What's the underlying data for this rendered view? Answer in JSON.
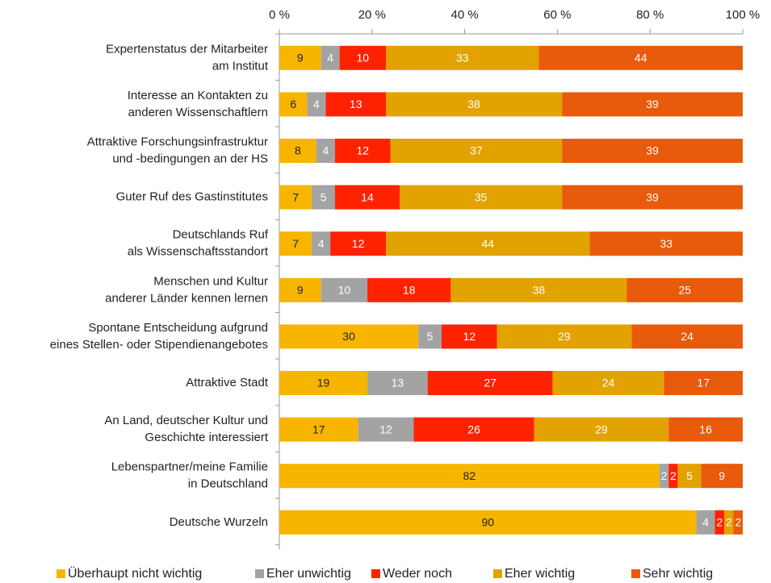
{
  "chart_data": {
    "type": "stacked_barh",
    "categories": [
      "Expertenstatus der Mitarbeiter\nam Institut",
      "Interesse an Kontakten zu\nanderen Wissenschaftlern",
      "Attraktive Forschungsinfrastruktur\nund -bedingungen an der HS",
      "Guter Ruf des Gastinstitutes",
      "Deutschlands Ruf\nals Wissenschaftsstandort",
      "Menschen und Kultur\nanderer Länder kennen lernen",
      "Spontane Entscheidung aufgrund\neines Stellen- oder Stipendienangebotes",
      "Attraktive Stadt",
      "An Land, deutscher Kultur und\nGeschichte interessiert",
      "Lebenspartner/meine Familie\nin Deutschland",
      "Deutsche Wurzeln"
    ],
    "series": [
      {
        "name": "Überhaupt nicht wichtig",
        "color": "#f7b500",
        "label_color": "#222222",
        "values": [
          9,
          6,
          8,
          7,
          7,
          9,
          30,
          19,
          17,
          82,
          90
        ]
      },
      {
        "name": "Eher unwichtig",
        "color": "#a3a3a3",
        "label_color": "#ffffff",
        "values": [
          4,
          4,
          4,
          5,
          4,
          10,
          5,
          13,
          12,
          2,
          4
        ]
      },
      {
        "name": "Weder noch",
        "color": "#ff2200",
        "label_color": "#ffffff",
        "values": [
          10,
          13,
          12,
          14,
          12,
          18,
          12,
          27,
          26,
          2,
          2
        ]
      },
      {
        "name": "Eher wichtig",
        "color": "#e2a200",
        "label_color": "#ffffff",
        "values": [
          33,
          38,
          37,
          35,
          44,
          38,
          29,
          24,
          29,
          5,
          2
        ]
      },
      {
        "name": "Sehr wichtig",
        "color": "#e85a0c",
        "label_color": "#ffffff",
        "values": [
          44,
          39,
          39,
          39,
          33,
          25,
          24,
          17,
          16,
          9,
          2
        ]
      }
    ],
    "xlim": [
      0,
      100
    ],
    "xticks": [
      {
        "value": 0,
        "label": "0 %"
      },
      {
        "value": 20,
        "label": "20 %"
      },
      {
        "value": 40,
        "label": "40 %"
      },
      {
        "value": 60,
        "label": "60 %"
      },
      {
        "value": 80,
        "label": "80 %"
      },
      {
        "value": 100,
        "label": "100 %"
      }
    ],
    "legend": "bottom"
  }
}
